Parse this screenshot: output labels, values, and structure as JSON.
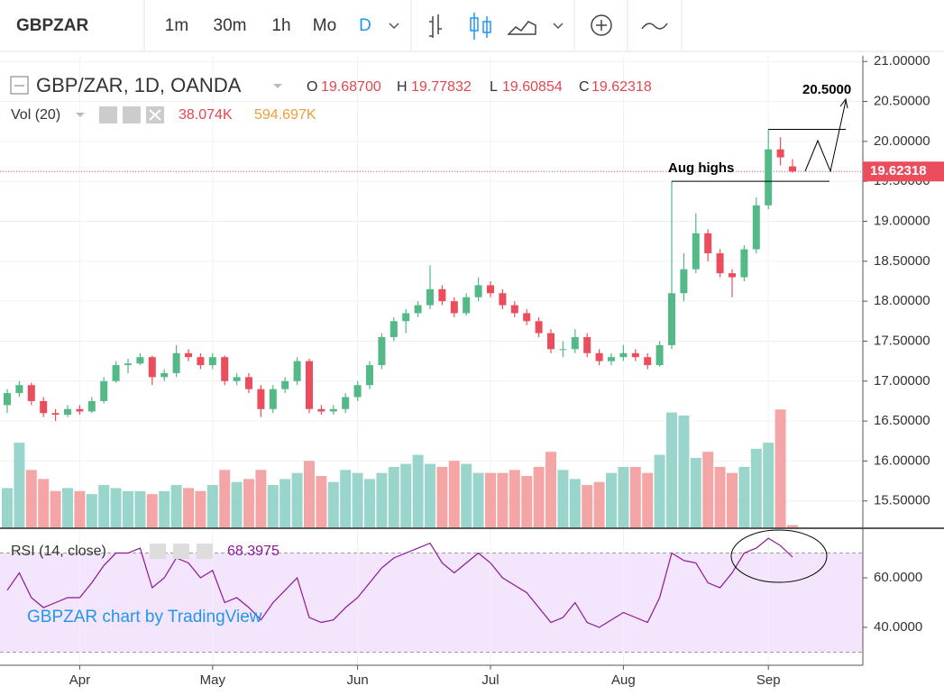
{
  "chart_data": {
    "type": "candlestick",
    "toolbar": {
      "symbol": "GBPZAR",
      "intervals": [
        "1m",
        "30m",
        "1h",
        "Mo",
        "D"
      ]
    },
    "title": "GBP/ZAR, 1D, OANDA",
    "legend": {
      "labels": [
        "O",
        "H",
        "L",
        "C"
      ],
      "values": [
        "19.68700",
        "19.77832",
        "19.60854",
        "19.62318"
      ]
    },
    "up_color": "#53b987",
    "down_color": "#eb4d5c",
    "candles": [
      [
        16.7,
        16.9,
        16.6,
        16.85
      ],
      [
        16.85,
        17.0,
        16.8,
        16.95
      ],
      [
        16.95,
        16.98,
        16.7,
        16.75
      ],
      [
        16.75,
        16.8,
        16.55,
        16.6
      ],
      [
        16.6,
        16.65,
        16.5,
        16.58
      ],
      [
        16.58,
        16.7,
        16.55,
        16.65
      ],
      [
        16.65,
        16.7,
        16.58,
        16.62
      ],
      [
        16.62,
        16.8,
        16.6,
        16.75
      ],
      [
        16.75,
        17.05,
        16.72,
        17.0
      ],
      [
        17.0,
        17.25,
        16.98,
        17.2
      ],
      [
        17.2,
        17.28,
        17.1,
        17.22
      ],
      [
        17.22,
        17.35,
        17.2,
        17.3
      ],
      [
        17.3,
        17.32,
        16.95,
        17.05
      ],
      [
        17.05,
        17.15,
        17.0,
        17.1
      ],
      [
        17.1,
        17.45,
        17.05,
        17.35
      ],
      [
        17.35,
        17.4,
        17.25,
        17.3
      ],
      [
        17.3,
        17.35,
        17.15,
        17.2
      ],
      [
        17.2,
        17.35,
        17.15,
        17.3
      ],
      [
        17.3,
        17.32,
        16.95,
        17.0
      ],
      [
        17.0,
        17.1,
        16.95,
        17.05
      ],
      [
        17.05,
        17.1,
        16.85,
        16.9
      ],
      [
        16.9,
        16.95,
        16.55,
        16.65
      ],
      [
        16.65,
        16.95,
        16.6,
        16.9
      ],
      [
        16.9,
        17.05,
        16.85,
        17.0
      ],
      [
        17.0,
        17.3,
        16.95,
        17.25
      ],
      [
        17.25,
        17.28,
        16.6,
        16.65
      ],
      [
        16.65,
        16.7,
        16.58,
        16.62
      ],
      [
        16.62,
        16.7,
        16.58,
        16.65
      ],
      [
        16.65,
        16.85,
        16.6,
        16.8
      ],
      [
        16.8,
        17.0,
        16.75,
        16.95
      ],
      [
        16.95,
        17.25,
        16.9,
        17.2
      ],
      [
        17.2,
        17.6,
        17.15,
        17.55
      ],
      [
        17.55,
        17.8,
        17.5,
        17.75
      ],
      [
        17.75,
        17.9,
        17.6,
        17.85
      ],
      [
        17.85,
        18.0,
        17.8,
        17.95
      ],
      [
        17.95,
        18.45,
        17.9,
        18.15
      ],
      [
        18.15,
        18.2,
        17.95,
        18.0
      ],
      [
        18.0,
        18.05,
        17.8,
        17.85
      ],
      [
        17.85,
        18.1,
        17.82,
        18.05
      ],
      [
        18.05,
        18.3,
        18.0,
        18.2
      ],
      [
        18.2,
        18.25,
        18.05,
        18.1
      ],
      [
        18.1,
        18.15,
        17.9,
        17.95
      ],
      [
        17.95,
        18.0,
        17.8,
        17.85
      ],
      [
        17.85,
        17.9,
        17.7,
        17.75
      ],
      [
        17.75,
        17.8,
        17.55,
        17.6
      ],
      [
        17.6,
        17.65,
        17.35,
        17.4
      ],
      [
        17.4,
        17.5,
        17.3,
        17.4
      ],
      [
        17.4,
        17.65,
        17.35,
        17.55
      ],
      [
        17.55,
        17.6,
        17.3,
        17.35
      ],
      [
        17.35,
        17.4,
        17.2,
        17.25
      ],
      [
        17.25,
        17.35,
        17.2,
        17.3
      ],
      [
        17.3,
        17.45,
        17.25,
        17.35
      ],
      [
        17.35,
        17.4,
        17.25,
        17.3
      ],
      [
        17.3,
        17.35,
        17.15,
        17.2
      ],
      [
        17.2,
        17.5,
        17.18,
        17.45
      ],
      [
        17.45,
        19.5,
        17.4,
        18.1
      ],
      [
        18.1,
        18.6,
        18.0,
        18.4
      ],
      [
        18.4,
        19.1,
        18.35,
        18.85
      ],
      [
        18.85,
        18.9,
        18.5,
        18.6
      ],
      [
        18.6,
        18.65,
        18.3,
        18.35
      ],
      [
        18.35,
        18.4,
        18.05,
        18.3
      ],
      [
        18.3,
        18.7,
        18.25,
        18.65
      ],
      [
        18.65,
        19.3,
        18.6,
        19.2
      ],
      [
        19.2,
        20.15,
        19.15,
        19.9
      ],
      [
        19.9,
        20.05,
        19.7,
        19.8
      ],
      [
        19.687,
        19.77832,
        19.60854,
        19.62318
      ]
    ],
    "ylim": [
      15.17,
      21.07
    ],
    "yticks": [
      {
        "value": 15.5,
        "label": "15.50000"
      },
      {
        "value": 16,
        "label": "16.00000"
      },
      {
        "value": 16.5,
        "label": "16.50000"
      },
      {
        "value": 17,
        "label": "17.00000"
      },
      {
        "value": 17.5,
        "label": "17.50000"
      },
      {
        "value": 18,
        "label": "18.00000"
      },
      {
        "value": 18.5,
        "label": "18.50000"
      },
      {
        "value": 19,
        "label": "19.00000"
      },
      {
        "value": 19.5,
        "label": "19.50000"
      },
      {
        "value": 20,
        "label": "20.00000"
      },
      {
        "value": 20.5,
        "label": "20.50000"
      },
      {
        "value": 21,
        "label": "21.00000"
      }
    ],
    "grid": true,
    "volume": {
      "title": "Vol (20)",
      "labels": [
        "38.074K",
        "594.697K"
      ],
      "up_color": "#9ad5cb",
      "down_color": "#f4a6a6",
      "ylim": [
        0,
        7800
      ],
      "values": [
        650,
        1400,
        950,
        800,
        600,
        650,
        600,
        550,
        700,
        650,
        600,
        600,
        550,
        600,
        700,
        650,
        600,
        700,
        950,
        750,
        800,
        950,
        700,
        800,
        900,
        1100,
        850,
        750,
        950,
        900,
        800,
        900,
        1000,
        1050,
        1200,
        1050,
        1000,
        1100,
        1050,
        900,
        900,
        900,
        950,
        850,
        1000,
        1250,
        950,
        800,
        700,
        750,
        900,
        1000,
        1000,
        900,
        1200,
        1900,
        1850,
        1150,
        1250,
        1000,
        900,
        1000,
        1300,
        1400,
        1950,
        38.074
      ]
    },
    "x_labels": [
      {
        "index": 6,
        "label": "Apr"
      },
      {
        "index": 17,
        "label": "May"
      },
      {
        "index": 29,
        "label": "Jun"
      },
      {
        "index": 40,
        "label": "Jul"
      },
      {
        "index": 51,
        "label": "Aug"
      },
      {
        "index": 63,
        "label": "Sep"
      }
    ],
    "annotations": [
      "20.5000",
      "Aug highs"
    ],
    "rsi": {
      "title": "RSI (14, close)",
      "color": "#8e1599",
      "values": [
        55,
        62,
        52,
        48,
        50,
        52,
        52,
        58,
        65,
        70,
        70,
        72,
        56,
        60,
        68,
        66,
        60,
        63,
        50,
        52,
        48,
        43,
        50,
        55,
        60,
        44,
        42,
        43,
        48,
        52,
        58,
        64,
        68,
        70,
        72,
        74,
        66,
        62,
        66,
        70,
        66,
        60,
        57,
        54,
        48,
        42,
        44,
        50,
        42,
        40,
        43,
        46,
        44,
        42,
        52,
        70,
        67,
        66,
        58,
        56,
        62,
        70,
        72,
        76,
        73,
        68.3975
      ],
      "ylim": [
        24.7,
        79.3
      ],
      "yticks": [
        {
          "value": 40,
          "label": "40.0000"
        },
        {
          "value": 60,
          "label": "60.0000"
        }
      ],
      "bands": [
        30,
        70
      ]
    },
    "watermark": "GBPZAR chart by TradingView"
  }
}
